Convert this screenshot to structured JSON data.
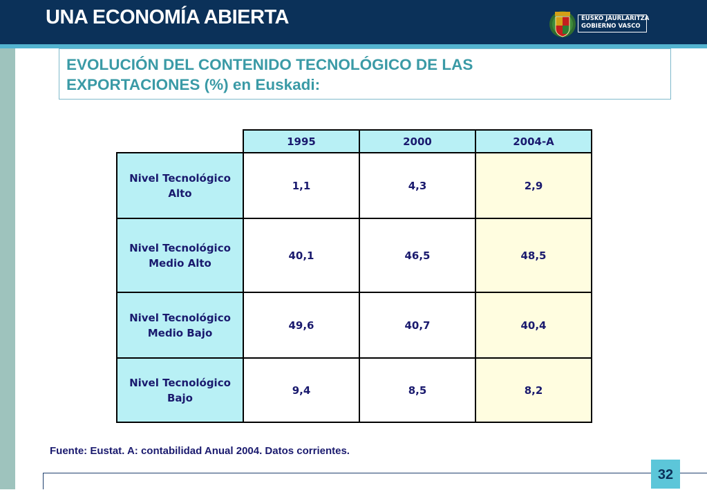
{
  "header": {
    "title": "UNA ECONOMÍA ABIERTA"
  },
  "logo": {
    "line1": "EUSKO JAURLARITZA",
    "line2": "GOBIERNO VASCO"
  },
  "subtitle": {
    "line1": "EVOLUCIÓN DEL CONTENIDO TECNOLÓGICO DE LAS",
    "line2": "EXPORTACIONES (%) en Euskadi:"
  },
  "table": {
    "years": [
      "1995",
      "2000",
      "2004-A"
    ],
    "rows": [
      {
        "label_line1": "Nivel Tecnológico",
        "label_line2": "Alto",
        "values": [
          "1,1",
          "4,3",
          "2,9"
        ]
      },
      {
        "label_line1": "Nivel Tecnológico",
        "label_line2": "Medio Alto",
        "values": [
          "40,1",
          "46,5",
          "48,5"
        ]
      },
      {
        "label_line1": "Nivel Tecnológico",
        "label_line2": "Medio Bajo",
        "values": [
          "49,6",
          "40,7",
          "40,4"
        ]
      },
      {
        "label_line1": "Nivel Tecnológico",
        "label_line2": "Bajo",
        "values": [
          "9,4",
          "8,5",
          "8,2"
        ]
      }
    ]
  },
  "source": "Fuente: Eustat. A: contabilidad Anual 2004. Datos corrientes.",
  "page_number": "32",
  "colors": {
    "header_bg": "#0b3159",
    "accent": "#53b3cf",
    "subtitle_text": "#3a9aa6",
    "label_cell": "#b8f0f5",
    "highlight_cell": "#fffde0"
  }
}
